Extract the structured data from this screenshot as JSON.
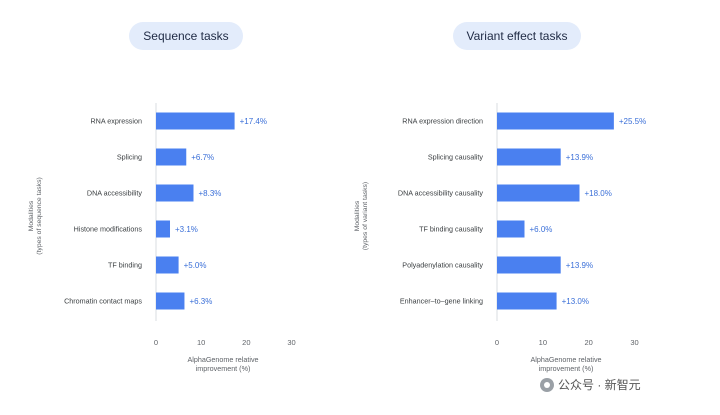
{
  "panels": {
    "left_title": "Sequence tasks",
    "right_title": "Variant effect tasks"
  },
  "watermark": "公众号 · 新智元",
  "colors": {
    "bar": "#4a80f0",
    "label": "#3a6fd8",
    "pill": "#e3ecfb"
  },
  "chart_data": [
    {
      "type": "bar",
      "orientation": "horizontal",
      "title": "Sequence tasks",
      "categories": [
        "RNA expression",
        "Splicing",
        "DNA accessibility",
        "Histone modifications",
        "TF binding",
        "Chromatin contact maps"
      ],
      "values": [
        17.4,
        6.7,
        8.3,
        3.1,
        5.0,
        6.3
      ],
      "value_labels": [
        "+17.4%",
        "+6.7%",
        "+8.3%",
        "+3.1%",
        "+5.0%",
        "+6.3%"
      ],
      "xlabel_lines": [
        "AlphaGenome relative",
        "improvement (%)"
      ],
      "ylabel_lines": [
        "Modalities",
        "(types of sequence tasks)"
      ],
      "xlim": [
        0,
        30
      ],
      "xticks": [
        0,
        10,
        20,
        30
      ],
      "xtick_labels": [
        "0",
        "10",
        "20",
        "30"
      ],
      "grid": false
    },
    {
      "type": "bar",
      "orientation": "horizontal",
      "title": "Variant effect tasks",
      "categories": [
        "RNA expression direction",
        "Splicing causality",
        "DNA accessibility causality",
        "TF binding causality",
        "Polyadenylation causality",
        "Enhancer–to–gene linking"
      ],
      "values": [
        25.5,
        13.9,
        18.0,
        6.0,
        13.9,
        13.0
      ],
      "value_labels": [
        "+25.5%",
        "+13.9%",
        "+18.0%",
        "+6.0%",
        "+13.9%",
        "+13.0%"
      ],
      "xlabel_lines": [
        "AlphaGenome relative",
        "improvement (%)"
      ],
      "ylabel_lines": [
        "Modalities",
        "(types of variant tasks)"
      ],
      "xlim": [
        0,
        30
      ],
      "xticks": [
        0,
        10,
        20,
        30
      ],
      "xtick_labels": [
        "0",
        "10",
        "20",
        "30"
      ],
      "grid": false
    }
  ]
}
